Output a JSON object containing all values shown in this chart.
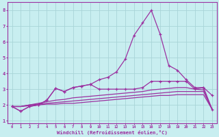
{
  "x": [
    0,
    1,
    2,
    3,
    4,
    5,
    6,
    7,
    8,
    9,
    10,
    11,
    12,
    13,
    14,
    15,
    16,
    17,
    18,
    19,
    20,
    21,
    22,
    23
  ],
  "line1": [
    1.9,
    1.6,
    1.9,
    2.0,
    2.3,
    3.05,
    2.85,
    3.1,
    3.2,
    3.3,
    3.6,
    3.75,
    4.1,
    4.9,
    6.4,
    7.2,
    8.0,
    6.5,
    4.5,
    4.2,
    3.6,
    3.1,
    3.1,
    2.6
  ],
  "line2": [
    1.9,
    1.6,
    1.9,
    2.0,
    2.3,
    3.05,
    2.85,
    3.1,
    3.2,
    3.3,
    3.0,
    3.0,
    3.0,
    3.0,
    3.0,
    3.1,
    3.5,
    3.5,
    3.5,
    3.5,
    3.5,
    3.0,
    3.1,
    1.7
  ],
  "line3": [
    1.9,
    1.9,
    2.0,
    2.1,
    2.2,
    2.3,
    2.35,
    2.45,
    2.5,
    2.55,
    2.6,
    2.65,
    2.7,
    2.75,
    2.8,
    2.85,
    2.95,
    3.0,
    3.05,
    3.1,
    3.1,
    3.0,
    2.95,
    1.7
  ],
  "line4": [
    1.9,
    1.9,
    2.0,
    2.05,
    2.1,
    2.15,
    2.2,
    2.25,
    2.3,
    2.35,
    2.4,
    2.45,
    2.5,
    2.55,
    2.6,
    2.65,
    2.7,
    2.75,
    2.8,
    2.85,
    2.85,
    2.85,
    2.85,
    1.7
  ],
  "line5": [
    1.9,
    1.9,
    1.95,
    2.0,
    2.05,
    2.05,
    2.1,
    2.1,
    2.15,
    2.2,
    2.25,
    2.3,
    2.35,
    2.4,
    2.45,
    2.5,
    2.55,
    2.6,
    2.6,
    2.65,
    2.65,
    2.65,
    2.65,
    1.7
  ],
  "color": "#9b30a0",
  "bg_color": "#c8eef0",
  "grid_color": "#a8d4d8",
  "xlabel": "Windchill (Refroidissement éolien,°C)",
  "xlim": [
    -0.5,
    23.5
  ],
  "ylim": [
    0.85,
    8.5
  ],
  "yticks": [
    1,
    2,
    3,
    4,
    5,
    6,
    7,
    8
  ],
  "xticks": [
    0,
    1,
    2,
    3,
    4,
    5,
    6,
    7,
    8,
    9,
    10,
    11,
    12,
    13,
    14,
    15,
    16,
    17,
    18,
    19,
    20,
    21,
    22,
    23
  ]
}
